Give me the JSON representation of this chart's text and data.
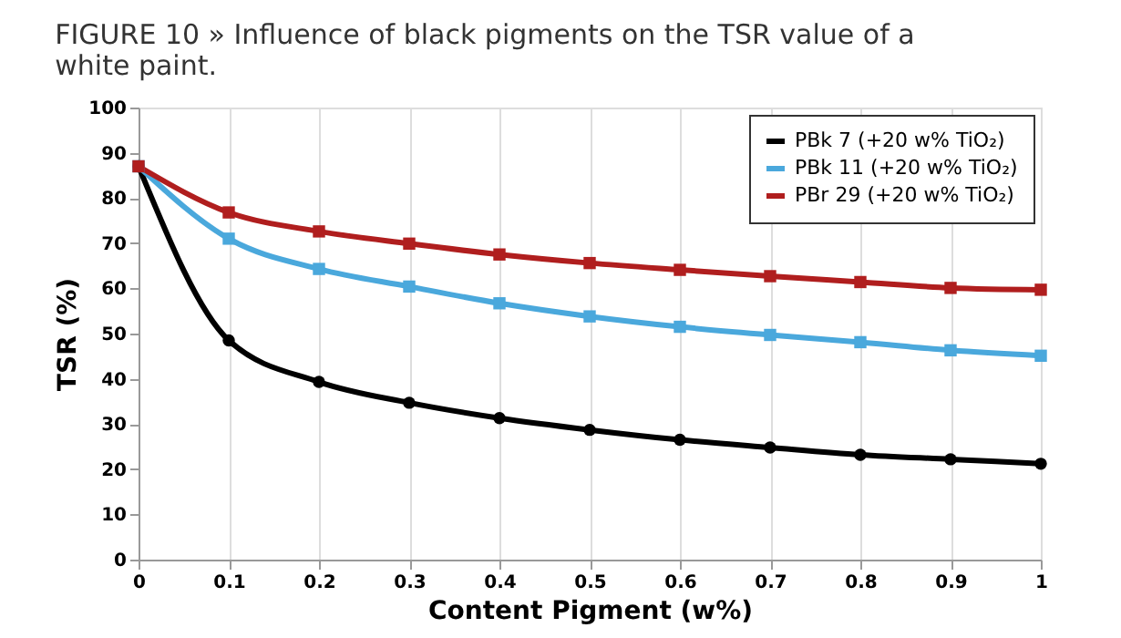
{
  "chart_data": {
    "type": "line",
    "title": "FIGURE 10 » Influence of black pigments on the TSR value of a white paint.",
    "xlabel": "Content Pigment (w%)",
    "ylabel": "TSR (%)",
    "x": [
      0,
      0.1,
      0.2,
      0.3,
      0.4,
      0.5,
      0.6,
      0.7,
      0.8,
      0.9,
      1
    ],
    "series": [
      {
        "name": "PBk 7 (+20 w% TiO₂)",
        "color": "#000000",
        "marker": "circle",
        "values": [
          87,
          48.5,
          39.3,
          34.7,
          31.3,
          28.7,
          26.5,
          24.8,
          23.2,
          22.2,
          21.2
        ]
      },
      {
        "name": "PBk 11 (+20 w% TiO₂)",
        "color": "#4aa8dc",
        "marker": "square",
        "values": [
          87,
          71,
          64.3,
          60.4,
          56.7,
          53.8,
          51.5,
          49.7,
          48.1,
          46.3,
          45.1
        ]
      },
      {
        "name": "PBr 29 (+20 w% TiO₂)",
        "color": "#b01e1e",
        "marker": "square",
        "values": [
          87,
          76.8,
          72.6,
          69.9,
          67.5,
          65.6,
          64.1,
          62.7,
          61.4,
          60.1,
          59.7
        ]
      }
    ],
    "xlim": [
      0,
      1
    ],
    "xticks": [
      0,
      0.1,
      0.2,
      0.3,
      0.4,
      0.5,
      0.6,
      0.7,
      0.8,
      0.9,
      1
    ],
    "ylim": [
      0,
      100
    ],
    "yticks": [
      0,
      10,
      20,
      30,
      40,
      50,
      60,
      70,
      80,
      90,
      100
    ],
    "grid": "x",
    "legend": "top right"
  }
}
